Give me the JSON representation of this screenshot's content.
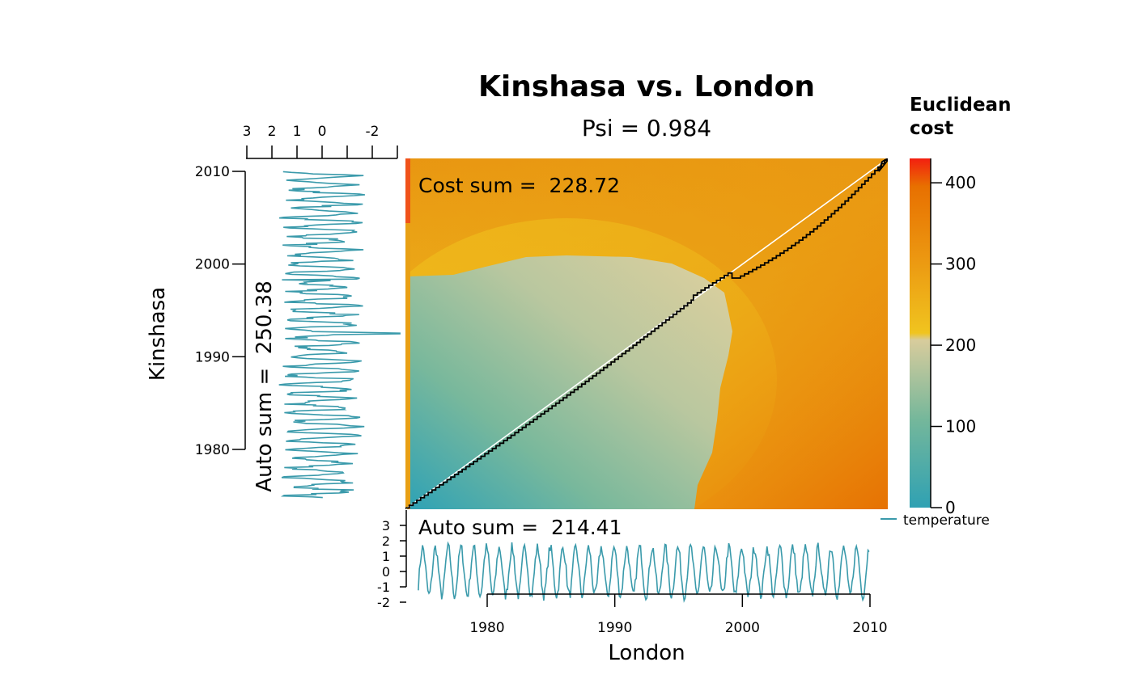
{
  "chart_data": {
    "type": "heatmap",
    "title": "Kinshasa vs. London",
    "subtitle": "Psi = 0.984",
    "xlabel": "London",
    "ylabel": "Kinshasa",
    "cost_sum_text": "Cost sum =  228.72",
    "x_auto_sum_text": "Auto sum =  214.41",
    "y_auto_sum_text": "Auto sum =  250.38",
    "x_range": [
      1973.9,
      2011.5
    ],
    "y_range": [
      1973.9,
      2011.5
    ],
    "x_ticks": [
      1980,
      1990,
      2000,
      2010
    ],
    "x_tick_labels": [
      "1980",
      "1990",
      "2000",
      "2010"
    ],
    "y_ticks": [
      1980,
      1990,
      2000,
      2010
    ],
    "y_tick_labels": [
      "1980",
      "1990",
      "2000",
      "2010"
    ],
    "colorbar": {
      "title": "Euclidean cost",
      "title_lines": [
        "Euclidean",
        "cost"
      ],
      "range": [
        0,
        430
      ],
      "ticks": [
        0,
        100,
        200,
        300,
        400
      ],
      "tick_labels": [
        "0",
        "100",
        "200",
        "300",
        "400"
      ],
      "colors": [
        "#2fa1b3",
        "#74b79b",
        "#d8cc9c",
        "#f0c41f",
        "#ec9a12",
        "#e87000",
        "#f31f10"
      ]
    },
    "bottom_series": {
      "name": "temperature",
      "value_ticks": [
        -2,
        -1,
        0,
        1,
        2,
        3
      ],
      "value_tick_labels": [
        "-2",
        "-1",
        "0",
        "1",
        "2",
        "3"
      ],
      "color": "#3a9aab"
    },
    "left_series": {
      "value_ticks": [
        3,
        2,
        1,
        0,
        -1,
        -2,
        -3
      ],
      "value_tick_labels": [
        "3",
        "2",
        "1",
        "0",
        "",
        "-2",
        ""
      ],
      "color": "#3a9aab"
    },
    "legend": {
      "entries": [
        "temperature"
      ],
      "placement": "bottom-right"
    },
    "warping_path_color": "#000000",
    "diagonal_color": "#ffffff"
  }
}
